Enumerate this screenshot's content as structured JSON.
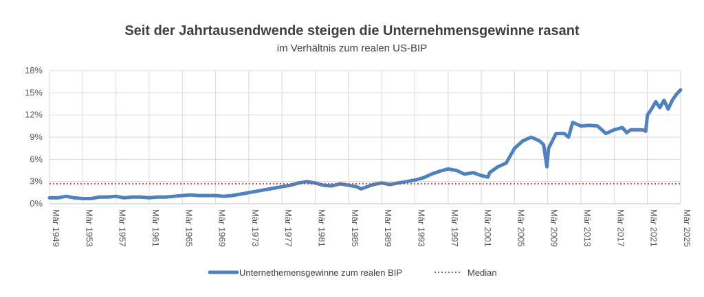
{
  "chart_data": {
    "type": "line",
    "title": "Seit der Jahrtausendwende steigen die Unternehmensgewinne rasant",
    "subtitle": "im Verhältnis zum realen US-BIP",
    "xlabel": "",
    "ylabel": "",
    "ylim": [
      0,
      18
    ],
    "y_ticks": [
      "0%",
      "3%",
      "6%",
      "9%",
      "12%",
      "15%",
      "18%"
    ],
    "y_tick_values": [
      0,
      3,
      6,
      9,
      12,
      15,
      18
    ],
    "x_range": [
      1949,
      2025
    ],
    "x_ticks": [
      "Mär 1949",
      "Mär 1953",
      "Mär 1957",
      "Mär 1961",
      "Mär 1965",
      "Mär 1969",
      "Mär 1973",
      "Mär 1977",
      "Mär 1981",
      "Mär 1985",
      "Mär 1989",
      "Mär 1993",
      "Mär 1997",
      "Mär 2001",
      "Mär 2005",
      "Mär 2009",
      "Mär 2013",
      "Mär 2017",
      "Mär 2021",
      "Mär 2025"
    ],
    "x_tick_values": [
      1949,
      1953,
      1957,
      1961,
      1965,
      1969,
      1973,
      1977,
      1981,
      1985,
      1989,
      1993,
      1997,
      2001,
      2005,
      2009,
      2013,
      2017,
      2021,
      2025
    ],
    "grid": true,
    "legend_position": "bottom",
    "series": [
      {
        "name": "Unternethemensgewinne zum realen BIP",
        "color": "#4f81bd",
        "x": [
          1949,
          1950,
          1951,
          1952,
          1953,
          1954,
          1955,
          1956,
          1957,
          1958,
          1959,
          1960,
          1961,
          1962,
          1963,
          1964,
          1965,
          1966,
          1967,
          1968,
          1969,
          1970,
          1971,
          1972,
          1973,
          1974,
          1975,
          1976,
          1977,
          1978,
          1979,
          1980,
          1981,
          1982,
          1983,
          1984,
          1985,
          1986,
          1986.5,
          1987,
          1988,
          1989,
          1990,
          1991,
          1992,
          1993,
          1994,
          1995,
          1996,
          1997,
          1998,
          1999,
          2000,
          2001,
          2001.8,
          2002,
          2003,
          2004,
          2005,
          2006,
          2007,
          2008,
          2008.5,
          2008.9,
          2009.1,
          2010,
          2011,
          2011.5,
          2012,
          2013,
          2014,
          2015,
          2016,
          2017,
          2018,
          2018.5,
          2019,
          2020,
          2020.4,
          2020.8,
          2021,
          2021.5,
          2022,
          2022.5,
          2023,
          2023.5,
          2024,
          2024.5,
          2025
        ],
        "values": [
          0.8,
          0.8,
          1.0,
          0.8,
          0.7,
          0.7,
          0.9,
          0.9,
          1.0,
          0.8,
          0.9,
          0.9,
          0.8,
          0.9,
          0.9,
          1.0,
          1.1,
          1.2,
          1.1,
          1.1,
          1.1,
          1.0,
          1.1,
          1.3,
          1.5,
          1.7,
          1.9,
          2.1,
          2.3,
          2.5,
          2.8,
          3.0,
          2.8,
          2.5,
          2.4,
          2.7,
          2.5,
          2.3,
          2.0,
          2.2,
          2.6,
          2.8,
          2.6,
          2.8,
          3.0,
          3.2,
          3.5,
          4.0,
          4.4,
          4.7,
          4.5,
          4.0,
          4.2,
          3.8,
          3.6,
          4.2,
          5.0,
          5.5,
          7.5,
          8.5,
          9.0,
          8.5,
          8.0,
          5.0,
          7.5,
          9.5,
          9.5,
          9.0,
          11.0,
          10.5,
          10.6,
          10.5,
          9.5,
          10.0,
          10.3,
          9.6,
          10.0,
          10.0,
          10.0,
          9.8,
          12.0,
          12.8,
          13.8,
          13.0,
          14.0,
          12.8,
          14.0,
          14.8,
          15.4
        ]
      },
      {
        "name": "Median",
        "color": "#c0504d",
        "x": [
          1949,
          2025
        ],
        "values": [
          2.7,
          2.7
        ]
      }
    ]
  }
}
